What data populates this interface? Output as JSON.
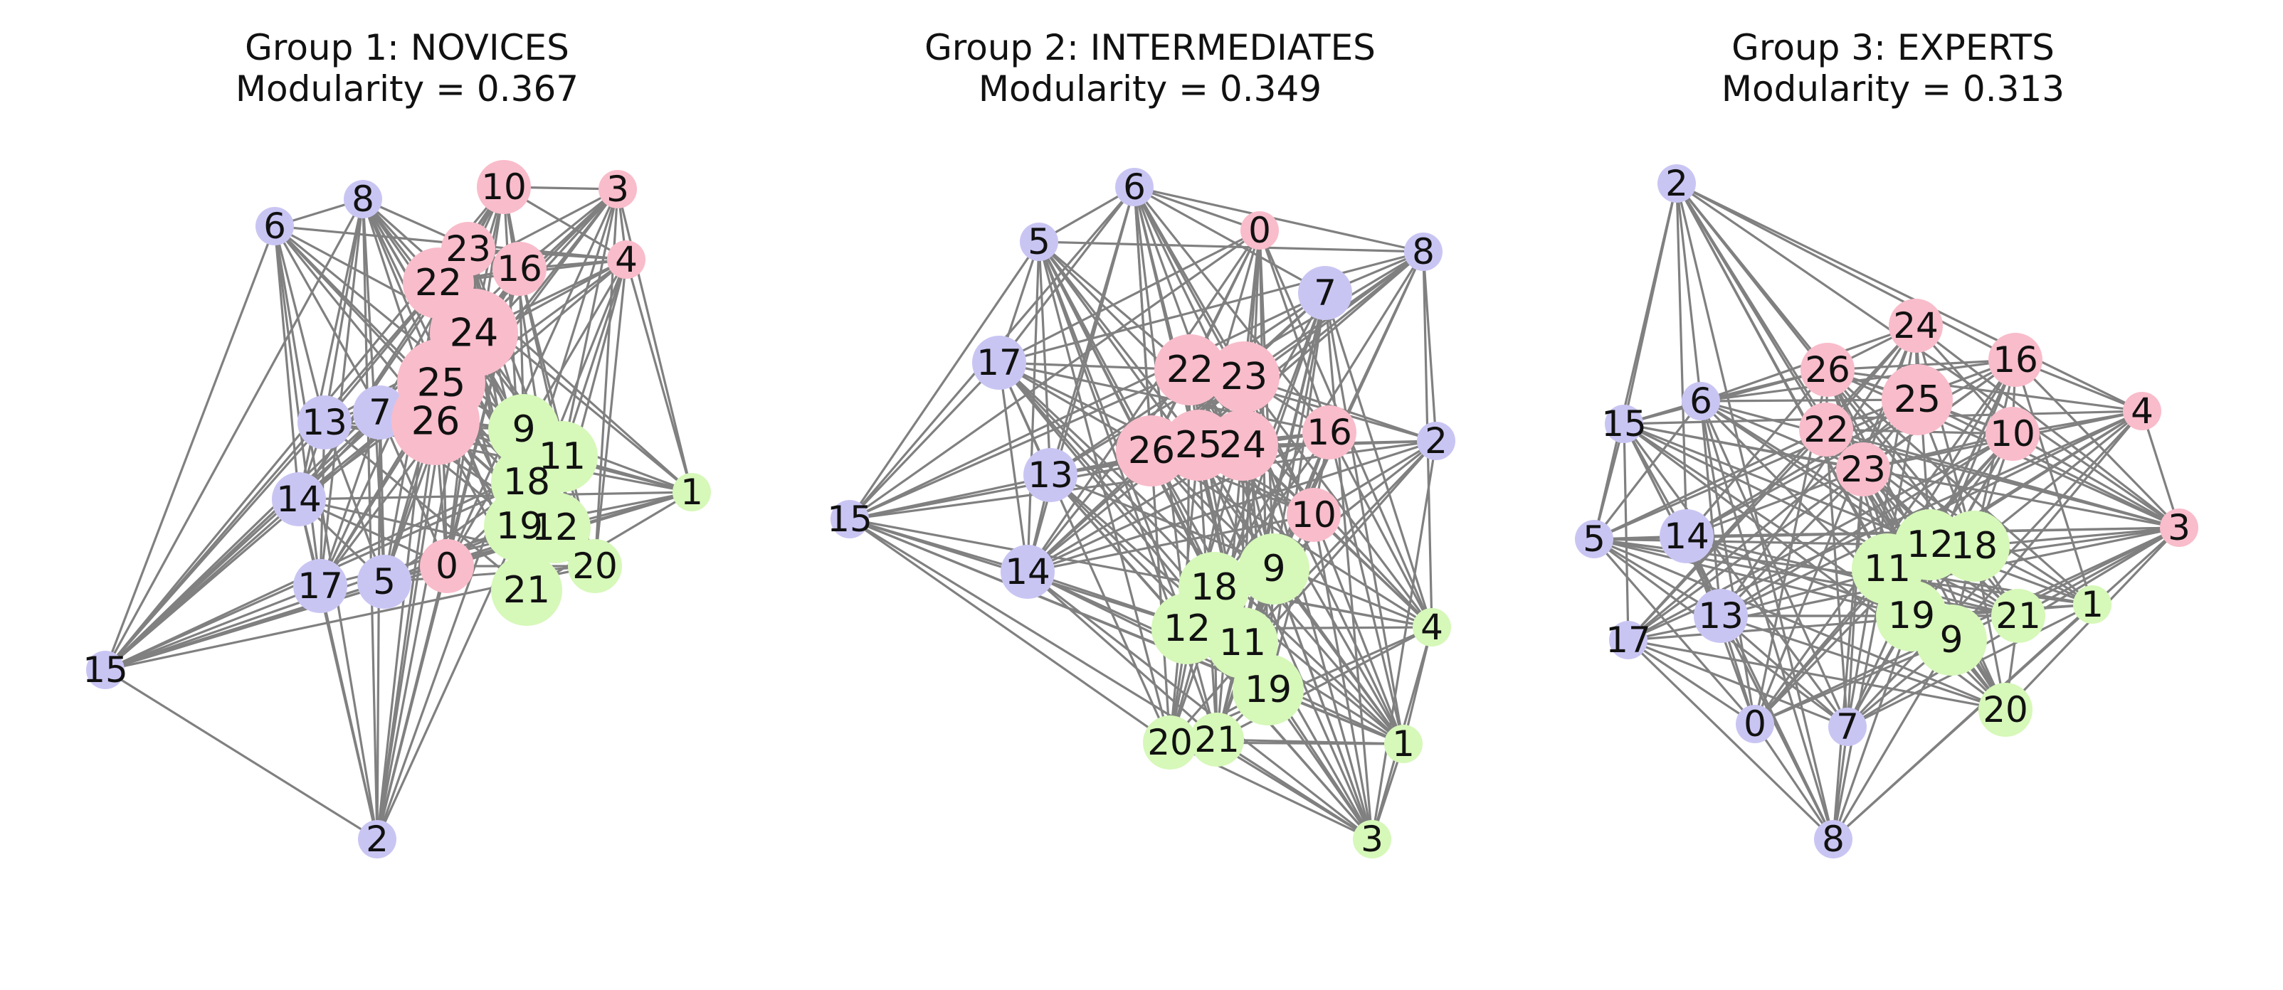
{
  "legend_colors": {
    "purple": "#c9c5f3",
    "pink": "#f9bccb",
    "green": "#d6f8b9",
    "edge": "#808080"
  },
  "panels": [
    {
      "title": "Group 1: NOVICES",
      "subtitle": "Modularity = 0.367",
      "nodes": [
        {
          "id": "6",
          "c": "purple",
          "s": 1
        },
        {
          "id": "8",
          "c": "purple",
          "s": 1
        },
        {
          "id": "10",
          "c": "pink",
          "s": 2
        },
        {
          "id": "3",
          "c": "pink",
          "s": 1
        },
        {
          "id": "23",
          "c": "pink",
          "s": 2
        },
        {
          "id": "22",
          "c": "pink",
          "s": 3
        },
        {
          "id": "16",
          "c": "pink",
          "s": 2
        },
        {
          "id": "4",
          "c": "pink",
          "s": 1
        },
        {
          "id": "24",
          "c": "pink",
          "s": 4
        },
        {
          "id": "25",
          "c": "pink",
          "s": 4
        },
        {
          "id": "26",
          "c": "pink",
          "s": 4
        },
        {
          "id": "7",
          "c": "purple",
          "s": 2
        },
        {
          "id": "13",
          "c": "purple",
          "s": 2
        },
        {
          "id": "9",
          "c": "green",
          "s": 3
        },
        {
          "id": "11",
          "c": "green",
          "s": 3
        },
        {
          "id": "1",
          "c": "green",
          "s": 1
        },
        {
          "id": "18",
          "c": "green",
          "s": 3
        },
        {
          "id": "14",
          "c": "purple",
          "s": 2
        },
        {
          "id": "19",
          "c": "green",
          "s": 3
        },
        {
          "id": "12",
          "c": "green",
          "s": 3
        },
        {
          "id": "20",
          "c": "green",
          "s": 2
        },
        {
          "id": "0",
          "c": "pink",
          "s": 2
        },
        {
          "id": "17",
          "c": "purple",
          "s": 2
        },
        {
          "id": "5",
          "c": "purple",
          "s": 2
        },
        {
          "id": "21",
          "c": "green",
          "s": 3
        },
        {
          "id": "15",
          "c": "purple",
          "s": 1
        },
        {
          "id": "2",
          "c": "purple",
          "s": 1
        }
      ]
    },
    {
      "title": "Group 2: INTERMEDIATES",
      "subtitle": "Modularity = 0.349",
      "nodes": [
        {
          "id": "6",
          "c": "purple",
          "s": 1
        },
        {
          "id": "0",
          "c": "pink",
          "s": 1
        },
        {
          "id": "5",
          "c": "purple",
          "s": 1
        },
        {
          "id": "8",
          "c": "purple",
          "s": 1
        },
        {
          "id": "7",
          "c": "purple",
          "s": 2
        },
        {
          "id": "17",
          "c": "purple",
          "s": 2
        },
        {
          "id": "22",
          "c": "pink",
          "s": 3
        },
        {
          "id": "23",
          "c": "pink",
          "s": 3
        },
        {
          "id": "16",
          "c": "pink",
          "s": 2
        },
        {
          "id": "2",
          "c": "purple",
          "s": 1
        },
        {
          "id": "26",
          "c": "pink",
          "s": 3
        },
        {
          "id": "25",
          "c": "pink",
          "s": 3
        },
        {
          "id": "24",
          "c": "pink",
          "s": 3
        },
        {
          "id": "13",
          "c": "purple",
          "s": 2
        },
        {
          "id": "15",
          "c": "purple",
          "s": 1
        },
        {
          "id": "10",
          "c": "pink",
          "s": 2
        },
        {
          "id": "14",
          "c": "purple",
          "s": 2
        },
        {
          "id": "9",
          "c": "green",
          "s": 3
        },
        {
          "id": "18",
          "c": "green",
          "s": 3
        },
        {
          "id": "12",
          "c": "green",
          "s": 3
        },
        {
          "id": "11",
          "c": "green",
          "s": 3
        },
        {
          "id": "4",
          "c": "green",
          "s": 1
        },
        {
          "id": "19",
          "c": "green",
          "s": 3
        },
        {
          "id": "20",
          "c": "green",
          "s": 2
        },
        {
          "id": "21",
          "c": "green",
          "s": 2
        },
        {
          "id": "1",
          "c": "green",
          "s": 1
        },
        {
          "id": "3",
          "c": "green",
          "s": 1
        }
      ]
    },
    {
      "title": "Group 3: EXPERTS",
      "subtitle": "Modularity = 0.313",
      "nodes": [
        {
          "id": "2",
          "c": "purple",
          "s": 1
        },
        {
          "id": "24",
          "c": "pink",
          "s": 2
        },
        {
          "id": "26",
          "c": "pink",
          "s": 2
        },
        {
          "id": "16",
          "c": "pink",
          "s": 2
        },
        {
          "id": "6",
          "c": "purple",
          "s": 1
        },
        {
          "id": "25",
          "c": "pink",
          "s": 3
        },
        {
          "id": "15",
          "c": "purple",
          "s": 1
        },
        {
          "id": "4",
          "c": "pink",
          "s": 1
        },
        {
          "id": "22",
          "c": "pink",
          "s": 2
        },
        {
          "id": "10",
          "c": "pink",
          "s": 2
        },
        {
          "id": "23",
          "c": "pink",
          "s": 2
        },
        {
          "id": "3",
          "c": "pink",
          "s": 1
        },
        {
          "id": "5",
          "c": "purple",
          "s": 1
        },
        {
          "id": "14",
          "c": "purple",
          "s": 2
        },
        {
          "id": "12",
          "c": "green",
          "s": 3
        },
        {
          "id": "18",
          "c": "green",
          "s": 3
        },
        {
          "id": "11",
          "c": "green",
          "s": 3
        },
        {
          "id": "13",
          "c": "purple",
          "s": 2
        },
        {
          "id": "1",
          "c": "green",
          "s": 1
        },
        {
          "id": "21",
          "c": "green",
          "s": 2
        },
        {
          "id": "19",
          "c": "green",
          "s": 3
        },
        {
          "id": "9",
          "c": "green",
          "s": 3
        },
        {
          "id": "17",
          "c": "purple",
          "s": 1
        },
        {
          "id": "20",
          "c": "green",
          "s": 2
        },
        {
          "id": "0",
          "c": "purple",
          "s": 1
        },
        {
          "id": "7",
          "c": "purple",
          "s": 1
        },
        {
          "id": "8",
          "c": "purple",
          "s": 1
        }
      ]
    }
  ]
}
